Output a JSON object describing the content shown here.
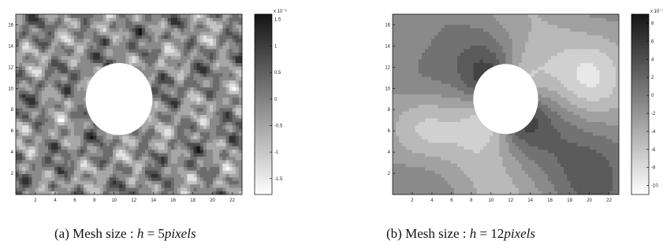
{
  "chart_data": [
    {
      "type": "heatmap",
      "style": "filled contour plot, grayscale",
      "caption": {
        "prefix": "(a) Mesh size : ",
        "var": "h",
        "eq": " = 5",
        "unit": "pixels"
      },
      "xlim": [
        0,
        23
      ],
      "ylim": [
        0,
        17
      ],
      "x_ticks": [
        2,
        4,
        6,
        8,
        10,
        12,
        14,
        16,
        18,
        20,
        22
      ],
      "y_ticks": [
        2,
        4,
        6,
        8,
        10,
        12,
        14,
        16
      ],
      "hole": {
        "center": [
          10.5,
          9.0
        ],
        "radius": 3.4
      },
      "colorbar": {
        "multiplier": "x 10⁻³",
        "ticks": [
          {
            "value": 1.5,
            "label": "1.5"
          },
          {
            "value": 1.0,
            "label": "1"
          },
          {
            "value": 0.5,
            "label": "0.5"
          },
          {
            "value": 0,
            "label": "0"
          },
          {
            "value": -0.5,
            "label": "-0.5"
          },
          {
            "value": -1.0,
            "label": "-1"
          },
          {
            "value": -1.5,
            "label": "-1.5"
          }
        ],
        "range": [
          -1.8,
          1.6
        ],
        "colors": {
          "high": "#141414",
          "low": "#ffffff"
        }
      },
      "field": "fine-grained noisy pattern"
    },
    {
      "type": "heatmap",
      "style": "filled contour plot, grayscale",
      "caption": {
        "prefix": "(b) Mesh size : ",
        "var": "h",
        "eq": " = 12",
        "unit": "pixels"
      },
      "xlim": [
        0,
        23
      ],
      "ylim": [
        0,
        17
      ],
      "x_ticks": [
        2,
        4,
        6,
        8,
        10,
        12,
        14,
        16,
        18,
        20,
        22
      ],
      "y_ticks": [
        2,
        4,
        6,
        8,
        10,
        12,
        14,
        16
      ],
      "hole": {
        "center": [
          11.5,
          9.0
        ],
        "radius": 3.3
      },
      "colorbar": {
        "multiplier": "x 10⁻⁴",
        "ticks": [
          {
            "value": 8,
            "label": "8"
          },
          {
            "value": 6,
            "label": "6"
          },
          {
            "value": 4,
            "label": "4"
          },
          {
            "value": 2,
            "label": "2"
          },
          {
            "value": 0,
            "label": "0"
          },
          {
            "value": -2,
            "label": "-2"
          },
          {
            "value": -4,
            "label": "-4"
          },
          {
            "value": -6,
            "label": "-6"
          },
          {
            "value": -8,
            "label": "-8"
          },
          {
            "value": -10,
            "label": "-10"
          }
        ],
        "range": [
          -11,
          9
        ],
        "colors": {
          "high": "#141414",
          "low": "#ffffff"
        }
      },
      "field": "smooth large-scale lobes"
    }
  ]
}
